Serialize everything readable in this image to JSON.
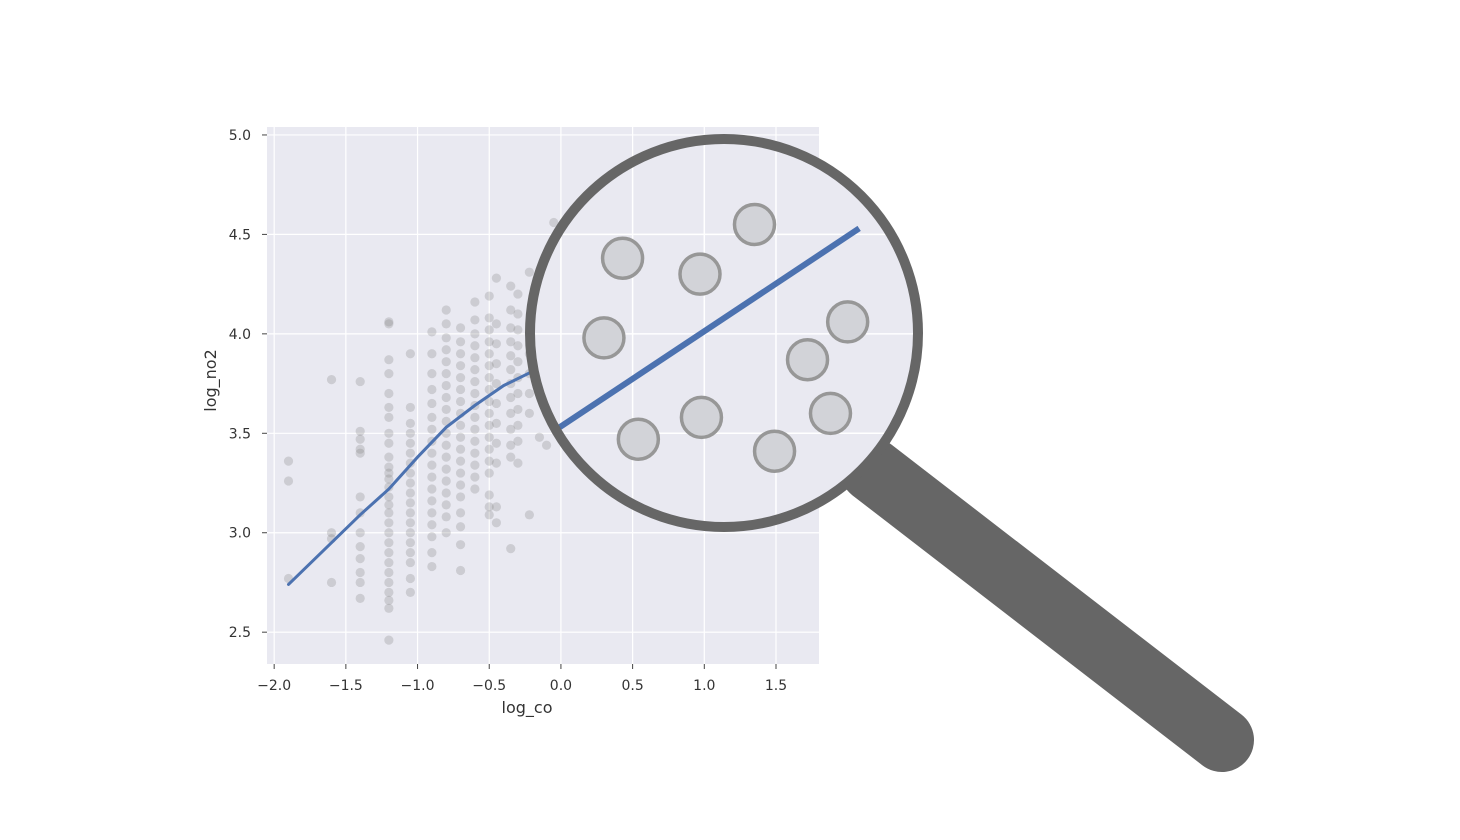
{
  "chart_data": {
    "type": "scatter",
    "title": "",
    "xlabel": "log_co",
    "ylabel": "log_no2",
    "xlim": [
      -2.05,
      1.8
    ],
    "ylim": [
      2.34,
      5.04
    ],
    "xticks": [
      -2.0,
      -1.5,
      -1.0,
      -0.5,
      0.0,
      0.5,
      1.0,
      1.5
    ],
    "xtick_labels": [
      "−2.0",
      "−1.5",
      "−1.0",
      "−0.5",
      "0.0",
      "0.5",
      "1.0",
      "1.5"
    ],
    "yticks": [
      2.5,
      3.0,
      3.5,
      4.0,
      4.5,
      5.0
    ],
    "ytick_labels": [
      "2.5",
      "3.0",
      "3.5",
      "4.0",
      "4.5",
      "5.0"
    ],
    "grid": true,
    "background": "#e9e9f1",
    "point_color": "#808080",
    "line_color": "#4c72b0",
    "points": [
      [
        -1.9,
        3.36
      ],
      [
        -1.9,
        3.26
      ],
      [
        -1.9,
        2.77
      ],
      [
        -1.6,
        3.77
      ],
      [
        -1.6,
        3.0
      ],
      [
        -1.6,
        2.97
      ],
      [
        -1.6,
        2.75
      ],
      [
        -1.4,
        3.76
      ],
      [
        -1.4,
        3.51
      ],
      [
        -1.4,
        3.47
      ],
      [
        -1.4,
        3.42
      ],
      [
        -1.4,
        3.4
      ],
      [
        -1.4,
        3.18
      ],
      [
        -1.4,
        3.1
      ],
      [
        -1.4,
        3.0
      ],
      [
        -1.4,
        2.93
      ],
      [
        -1.4,
        2.87
      ],
      [
        -1.4,
        2.8
      ],
      [
        -1.4,
        2.75
      ],
      [
        -1.4,
        2.67
      ],
      [
        -1.2,
        4.06
      ],
      [
        -1.2,
        4.05
      ],
      [
        -1.2,
        3.87
      ],
      [
        -1.2,
        3.8
      ],
      [
        -1.2,
        3.7
      ],
      [
        -1.2,
        3.63
      ],
      [
        -1.2,
        3.58
      ],
      [
        -1.2,
        3.5
      ],
      [
        -1.2,
        3.45
      ],
      [
        -1.2,
        3.38
      ],
      [
        -1.2,
        3.33
      ],
      [
        -1.2,
        3.3
      ],
      [
        -1.2,
        3.27
      ],
      [
        -1.2,
        3.23
      ],
      [
        -1.2,
        3.18
      ],
      [
        -1.2,
        3.14
      ],
      [
        -1.2,
        3.1
      ],
      [
        -1.2,
        3.05
      ],
      [
        -1.2,
        3.0
      ],
      [
        -1.2,
        2.95
      ],
      [
        -1.2,
        2.9
      ],
      [
        -1.2,
        2.85
      ],
      [
        -1.2,
        2.8
      ],
      [
        -1.2,
        2.75
      ],
      [
        -1.2,
        2.7
      ],
      [
        -1.2,
        2.66
      ],
      [
        -1.2,
        2.62
      ],
      [
        -1.2,
        2.46
      ],
      [
        -1.05,
        3.9
      ],
      [
        -1.05,
        3.63
      ],
      [
        -1.05,
        3.55
      ],
      [
        -1.05,
        3.5
      ],
      [
        -1.05,
        3.45
      ],
      [
        -1.05,
        3.4
      ],
      [
        -1.05,
        3.35
      ],
      [
        -1.05,
        3.3
      ],
      [
        -1.05,
        3.25
      ],
      [
        -1.05,
        3.2
      ],
      [
        -1.05,
        3.15
      ],
      [
        -1.05,
        3.1
      ],
      [
        -1.05,
        3.05
      ],
      [
        -1.05,
        3.0
      ],
      [
        -1.05,
        2.95
      ],
      [
        -1.05,
        2.9
      ],
      [
        -1.05,
        2.85
      ],
      [
        -1.05,
        2.77
      ],
      [
        -1.05,
        2.7
      ],
      [
        -0.9,
        4.01
      ],
      [
        -0.9,
        3.9
      ],
      [
        -0.9,
        3.8
      ],
      [
        -0.9,
        3.72
      ],
      [
        -0.9,
        3.65
      ],
      [
        -0.9,
        3.58
      ],
      [
        -0.9,
        3.52
      ],
      [
        -0.9,
        3.46
      ],
      [
        -0.9,
        3.4
      ],
      [
        -0.9,
        3.34
      ],
      [
        -0.9,
        3.28
      ],
      [
        -0.9,
        3.22
      ],
      [
        -0.9,
        3.16
      ],
      [
        -0.9,
        3.1
      ],
      [
        -0.9,
        3.04
      ],
      [
        -0.9,
        2.98
      ],
      [
        -0.9,
        2.9
      ],
      [
        -0.9,
        2.83
      ],
      [
        -0.8,
        4.12
      ],
      [
        -0.8,
        4.05
      ],
      [
        -0.8,
        3.98
      ],
      [
        -0.8,
        3.92
      ],
      [
        -0.8,
        3.86
      ],
      [
        -0.8,
        3.8
      ],
      [
        -0.8,
        3.74
      ],
      [
        -0.8,
        3.68
      ],
      [
        -0.8,
        3.62
      ],
      [
        -0.8,
        3.56
      ],
      [
        -0.8,
        3.5
      ],
      [
        -0.8,
        3.44
      ],
      [
        -0.8,
        3.38
      ],
      [
        -0.8,
        3.32
      ],
      [
        -0.8,
        3.26
      ],
      [
        -0.8,
        3.2
      ],
      [
        -0.8,
        3.14
      ],
      [
        -0.8,
        3.08
      ],
      [
        -0.8,
        3.0
      ],
      [
        -0.7,
        4.03
      ],
      [
        -0.7,
        3.96
      ],
      [
        -0.7,
        3.9
      ],
      [
        -0.7,
        3.84
      ],
      [
        -0.7,
        3.78
      ],
      [
        -0.7,
        3.72
      ],
      [
        -0.7,
        3.66
      ],
      [
        -0.7,
        3.6
      ],
      [
        -0.7,
        3.54
      ],
      [
        -0.7,
        3.48
      ],
      [
        -0.7,
        3.42
      ],
      [
        -0.7,
        3.36
      ],
      [
        -0.7,
        3.3
      ],
      [
        -0.7,
        3.24
      ],
      [
        -0.7,
        3.18
      ],
      [
        -0.7,
        3.1
      ],
      [
        -0.7,
        3.03
      ],
      [
        -0.7,
        2.94
      ],
      [
        -0.7,
        2.81
      ],
      [
        -0.6,
        4.16
      ],
      [
        -0.6,
        4.07
      ],
      [
        -0.6,
        4.0
      ],
      [
        -0.6,
        3.94
      ],
      [
        -0.6,
        3.88
      ],
      [
        -0.6,
        3.82
      ],
      [
        -0.6,
        3.76
      ],
      [
        -0.6,
        3.7
      ],
      [
        -0.6,
        3.64
      ],
      [
        -0.6,
        3.58
      ],
      [
        -0.6,
        3.52
      ],
      [
        -0.6,
        3.46
      ],
      [
        -0.6,
        3.4
      ],
      [
        -0.6,
        3.34
      ],
      [
        -0.6,
        3.28
      ],
      [
        -0.6,
        3.22
      ],
      [
        -0.5,
        4.19
      ],
      [
        -0.5,
        4.08
      ],
      [
        -0.5,
        4.02
      ],
      [
        -0.5,
        3.96
      ],
      [
        -0.5,
        3.9
      ],
      [
        -0.5,
        3.84
      ],
      [
        -0.5,
        3.78
      ],
      [
        -0.5,
        3.72
      ],
      [
        -0.5,
        3.66
      ],
      [
        -0.5,
        3.6
      ],
      [
        -0.5,
        3.54
      ],
      [
        -0.5,
        3.48
      ],
      [
        -0.5,
        3.42
      ],
      [
        -0.5,
        3.36
      ],
      [
        -0.5,
        3.3
      ],
      [
        -0.5,
        3.19
      ],
      [
        -0.5,
        3.13
      ],
      [
        -0.5,
        3.09
      ],
      [
        -0.45,
        4.28
      ],
      [
        -0.45,
        4.05
      ],
      [
        -0.45,
        3.95
      ],
      [
        -0.45,
        3.85
      ],
      [
        -0.45,
        3.75
      ],
      [
        -0.45,
        3.65
      ],
      [
        -0.45,
        3.55
      ],
      [
        -0.45,
        3.45
      ],
      [
        -0.45,
        3.35
      ],
      [
        -0.45,
        3.13
      ],
      [
        -0.45,
        3.05
      ],
      [
        -0.35,
        4.24
      ],
      [
        -0.35,
        4.12
      ],
      [
        -0.35,
        4.03
      ],
      [
        -0.35,
        3.96
      ],
      [
        -0.35,
        3.89
      ],
      [
        -0.35,
        3.82
      ],
      [
        -0.35,
        3.75
      ],
      [
        -0.35,
        3.68
      ],
      [
        -0.35,
        3.6
      ],
      [
        -0.35,
        3.52
      ],
      [
        -0.35,
        3.44
      ],
      [
        -0.35,
        3.38
      ],
      [
        -0.35,
        2.92
      ],
      [
        -0.3,
        4.2
      ],
      [
        -0.3,
        4.1
      ],
      [
        -0.3,
        4.02
      ],
      [
        -0.3,
        3.94
      ],
      [
        -0.3,
        3.86
      ],
      [
        -0.3,
        3.78
      ],
      [
        -0.3,
        3.7
      ],
      [
        -0.3,
        3.62
      ],
      [
        -0.3,
        3.54
      ],
      [
        -0.3,
        3.46
      ],
      [
        -0.3,
        3.35
      ],
      [
        -0.22,
        4.31
      ],
      [
        -0.22,
        4.0
      ],
      [
        -0.22,
        3.9
      ],
      [
        -0.22,
        3.8
      ],
      [
        -0.22,
        3.7
      ],
      [
        -0.22,
        3.6
      ],
      [
        -0.22,
        3.09
      ],
      [
        -0.15,
        3.48
      ],
      [
        -0.1,
        3.44
      ],
      [
        -0.05,
        4.56
      ],
      [
        -0.05,
        4.22
      ]
    ],
    "fit_line": [
      [
        -1.9,
        2.74
      ],
      [
        -1.6,
        2.95
      ],
      [
        -1.4,
        3.09
      ],
      [
        -1.2,
        3.22
      ],
      [
        -1.0,
        3.38
      ],
      [
        -0.8,
        3.53
      ],
      [
        -0.6,
        3.64
      ],
      [
        -0.4,
        3.74
      ],
      [
        -0.2,
        3.81
      ],
      [
        -0.1,
        3.85
      ]
    ],
    "zoom_inset": {
      "shape": "magnifying-glass",
      "points": [
        [
          0.43,
          4.38
        ],
        [
          0.97,
          4.3
        ],
        [
          1.35,
          4.55
        ],
        [
          0.3,
          3.98
        ],
        [
          2.0,
          4.06
        ],
        [
          1.72,
          3.87
        ],
        [
          0.54,
          3.47
        ],
        [
          0.98,
          3.58
        ],
        [
          1.49,
          3.41
        ],
        [
          1.88,
          3.6
        ]
      ],
      "line": [
        [
          -0.03,
          3.52
        ],
        [
          2.08,
          4.53
        ]
      ],
      "frame_color": "#666666"
    }
  }
}
